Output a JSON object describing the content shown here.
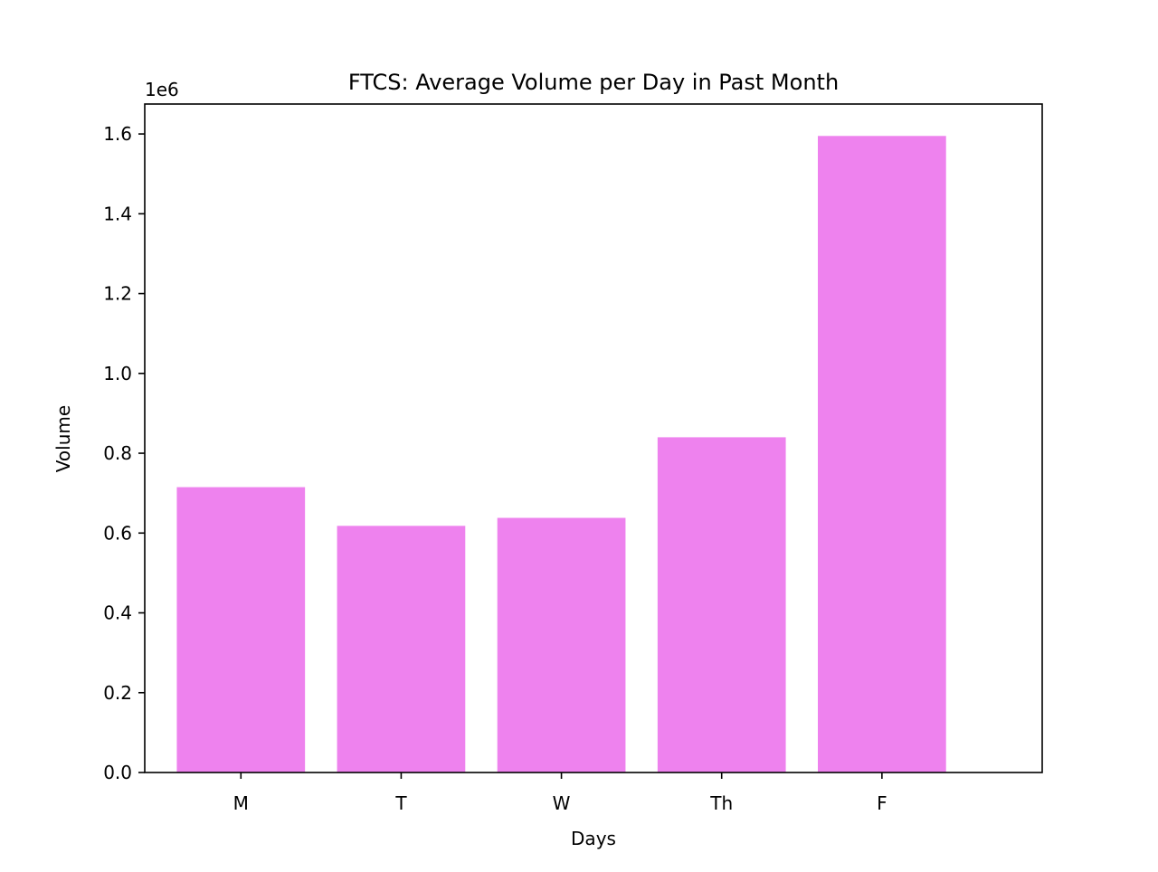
{
  "chart_data": {
    "type": "bar",
    "title": "FTCS: Average Volume per Day in Past Month",
    "xlabel": "Days",
    "ylabel": "Volume",
    "y_offset_label": "1e6",
    "categories": [
      "M",
      "T",
      "W",
      "Th",
      "F"
    ],
    "values": [
      715000,
      618000,
      638000,
      840000,
      1595000
    ],
    "ylim": [
      0,
      1675000
    ],
    "y_ticks": [
      0,
      200000,
      400000,
      600000,
      800000,
      1000000,
      1200000,
      1400000,
      1600000
    ],
    "y_tick_labels": [
      "0.0",
      "0.2",
      "0.4",
      "0.6",
      "0.8",
      "1.0",
      "1.2",
      "1.4",
      "1.6"
    ],
    "bar_color": "#ee82ee",
    "grid": false,
    "legend": "none"
  }
}
